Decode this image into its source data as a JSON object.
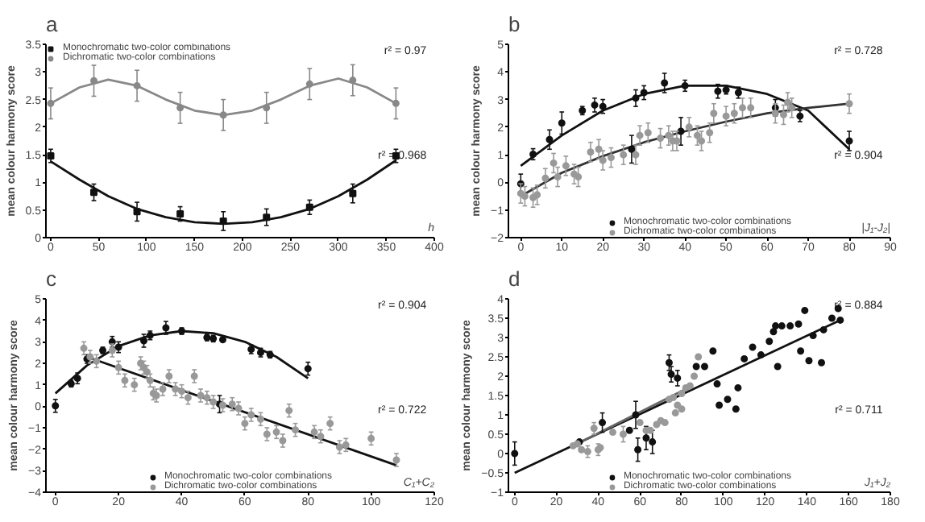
{
  "chart_data": [
    {
      "type": "scatter",
      "title": "a",
      "ylabel": "mean colour harmony score",
      "xlabel": "h",
      "xlim": [
        -5,
        400
      ],
      "xticks": [
        0,
        50,
        100,
        150,
        200,
        250,
        300,
        350,
        400
      ],
      "ylim": [
        0,
        3.5
      ],
      "yticks": [
        0,
        0.5,
        1,
        1.5,
        2,
        2.5,
        3,
        3.5
      ],
      "legend": "top left",
      "annotations": [
        "r² = 0.97",
        "r² = 0.968"
      ],
      "series": [
        {
          "name": "Monochromatic two-color combinations",
          "color": "#111111",
          "marker": "square",
          "x": [
            0,
            45,
            90,
            135,
            180,
            225,
            270,
            315,
            360
          ],
          "values": [
            1.48,
            0.82,
            0.47,
            0.43,
            0.3,
            0.37,
            0.55,
            0.8,
            1.48
          ],
          "errors": [
            0.12,
            0.15,
            0.17,
            0.13,
            0.17,
            0.15,
            0.13,
            0.17,
            0.12
          ]
        },
        {
          "name": "Dichromatic two-color combinations",
          "color": "#888888",
          "marker": "circle",
          "x": [
            0,
            45,
            90,
            135,
            180,
            225,
            270,
            315,
            360
          ],
          "values": [
            2.43,
            2.84,
            2.75,
            2.35,
            2.22,
            2.35,
            2.78,
            2.85,
            2.43
          ],
          "errors": [
            0.28,
            0.28,
            0.28,
            0.28,
            0.28,
            0.28,
            0.28,
            0.28,
            0.28
          ]
        },
        {
          "type": "line",
          "color": "#111111",
          "x": [
            0,
            30,
            60,
            90,
            120,
            150,
            180,
            210,
            240,
            270,
            300,
            330,
            360
          ],
          "values": [
            1.38,
            1.05,
            0.75,
            0.52,
            0.37,
            0.28,
            0.25,
            0.28,
            0.37,
            0.52,
            0.75,
            1.05,
            1.4
          ]
        },
        {
          "type": "line",
          "color": "#888888",
          "x": [
            0,
            30,
            60,
            90,
            120,
            150,
            180,
            210,
            240,
            270,
            300,
            330,
            360
          ],
          "values": [
            2.43,
            2.72,
            2.86,
            2.75,
            2.5,
            2.3,
            2.22,
            2.3,
            2.5,
            2.75,
            2.88,
            2.72,
            2.43
          ]
        }
      ]
    },
    {
      "type": "scatter",
      "title": "b",
      "ylabel": "mean colour harmony score",
      "xlabel": "|J₁-J₂|",
      "xlim": [
        -3,
        90
      ],
      "xticks": [
        0,
        10,
        20,
        30,
        40,
        50,
        60,
        70,
        80,
        90
      ],
      "ylim": [
        -2,
        5
      ],
      "yticks": [
        -2,
        -1,
        0,
        1,
        2,
        3,
        4,
        5
      ],
      "legend": "bottom",
      "annotations": [
        "r² = 0.728",
        "r² = 0.904"
      ],
      "series": [
        {
          "name": "Monochromatic two-color combinations",
          "color": "#111111",
          "marker": "circle",
          "x": [
            0,
            3,
            7,
            10,
            15,
            18,
            20,
            27,
            28,
            30,
            35,
            39,
            40,
            48,
            50,
            53,
            62,
            65,
            68,
            80
          ],
          "values": [
            -0.05,
            1.02,
            1.55,
            2.15,
            2.6,
            2.8,
            2.75,
            1.2,
            3.05,
            3.25,
            3.6,
            1.85,
            3.5,
            3.3,
            3.35,
            3.25,
            2.7,
            null,
            2.4,
            1.5
          ],
          "errors": [
            0.35,
            0.2,
            0.35,
            0.4,
            0.15,
            0.25,
            0.25,
            0.5,
            0.3,
            0.25,
            0.35,
            0.5,
            0.2,
            0.25,
            0.15,
            0.2,
            0.3,
            null,
            0.2,
            0.35
          ]
        },
        {
          "name": "Dichromatic two-color combinations",
          "color": "#999999",
          "marker": "circle",
          "x": [
            0,
            1,
            3,
            4,
            6,
            8,
            9,
            11,
            13,
            14,
            17,
            19,
            20,
            22,
            25,
            28,
            29,
            31,
            34,
            36,
            37,
            38,
            41,
            43,
            44,
            46,
            47,
            50,
            52,
            54,
            56,
            62,
            64,
            65,
            66,
            80
          ],
          "values": [
            -0.4,
            -0.5,
            -0.55,
            -0.45,
            0.15,
            0.7,
            0.2,
            0.6,
            0.3,
            0.2,
            1.1,
            1.2,
            0.8,
            0.9,
            1.0,
            1.0,
            1.7,
            1.8,
            1.6,
            1.7,
            1.5,
            1.5,
            2.0,
            1.7,
            1.5,
            1.8,
            2.5,
            2.4,
            2.5,
            2.7,
            2.7,
            2.5,
            2.45,
            2.9,
            2.7,
            2.85
          ],
          "errors": [
            0.35,
            0.35,
            0.35,
            0.35,
            0.35,
            0.35,
            0.35,
            0.35,
            0.35,
            0.35,
            0.35,
            0.35,
            0.35,
            0.35,
            0.35,
            0.35,
            0.35,
            0.35,
            0.35,
            0.35,
            0.35,
            0.35,
            0.35,
            0.35,
            0.35,
            0.35,
            0.35,
            0.35,
            0.35,
            0.35,
            0.35,
            0.35,
            0.35,
            0.35,
            0.35,
            0.35
          ]
        },
        {
          "type": "line",
          "color": "#111111",
          "x": [
            0,
            10,
            20,
            30,
            40,
            50,
            60,
            70,
            80
          ],
          "values": [
            0.6,
            1.7,
            2.6,
            3.2,
            3.5,
            3.5,
            3.2,
            2.6,
            1.2
          ]
        },
        {
          "type": "line",
          "color": "#333333",
          "x": [
            0,
            10,
            20,
            30,
            40,
            50,
            60,
            70,
            80
          ],
          "values": [
            -0.5,
            0.35,
            0.95,
            1.45,
            1.85,
            2.2,
            2.5,
            2.7,
            2.85
          ]
        }
      ]
    },
    {
      "type": "scatter",
      "title": "c",
      "ylabel": "mean colour harmony score",
      "xlabel": "C₁+C₂",
      "xlim": [
        -3,
        120
      ],
      "xticks": [
        0,
        20,
        40,
        60,
        80,
        100,
        120
      ],
      "ylim": [
        -4,
        5
      ],
      "yticks": [
        -4,
        -3,
        -2,
        -1,
        0,
        1,
        2,
        3,
        4,
        5
      ],
      "legend": "bottom",
      "annotations": [
        "r² = 0.904",
        "r² = 0.722"
      ],
      "series": [
        {
          "name": "Monochromatic two-color combinations",
          "color": "#111111",
          "marker": "circle",
          "x": [
            0,
            5,
            7,
            10,
            15,
            18,
            20,
            28,
            30,
            35,
            40,
            48,
            50,
            52,
            53,
            62,
            65,
            68,
            80
          ],
          "values": [
            0.02,
            1.05,
            1.3,
            2.2,
            2.6,
            3.0,
            2.75,
            3.05,
            3.3,
            3.65,
            3.5,
            3.2,
            3.15,
            0.1,
            3.1,
            2.65,
            2.5,
            2.4,
            1.75
          ],
          "errors": [
            0.3,
            0.15,
            0.25,
            0.2,
            0.15,
            0.25,
            0.25,
            0.3,
            0.2,
            0.3,
            0.15,
            0.15,
            0.15,
            0.4,
            0.1,
            0.2,
            0.2,
            0.15,
            0.3
          ]
        },
        {
          "name": "Dichromatic two-color combinations",
          "color": "#999999",
          "marker": "circle",
          "x": [
            9,
            11,
            13,
            18,
            20,
            22,
            25,
            27,
            28,
            29,
            30,
            31,
            32,
            34,
            36,
            38,
            40,
            42,
            44,
            46,
            48,
            50,
            53,
            56,
            58,
            60,
            62,
            65,
            67,
            70,
            72,
            74,
            76,
            82,
            84,
            87,
            90,
            92,
            100,
            108
          ],
          "values": [
            2.7,
            2.3,
            2.1,
            2.6,
            1.8,
            1.2,
            1.0,
            2.0,
            1.8,
            1.6,
            1.2,
            0.6,
            0.5,
            0.8,
            1.4,
            0.8,
            0.7,
            0.4,
            1.4,
            0.5,
            0.4,
            0.2,
            0.05,
            0.1,
            -0.1,
            -0.8,
            -0.4,
            -0.6,
            -1.3,
            -1.2,
            -1.6,
            -0.2,
            -1.1,
            -1.2,
            -1.4,
            -0.8,
            -1.9,
            -1.8,
            -1.5,
            -2.5
          ],
          "errors": [
            0.3,
            0.3,
            0.3,
            0.3,
            0.3,
            0.3,
            0.3,
            0.3,
            0.3,
            0.3,
            0.3,
            0.3,
            0.3,
            0.3,
            0.3,
            0.3,
            0.3,
            0.3,
            0.3,
            0.3,
            0.3,
            0.3,
            0.3,
            0.3,
            0.3,
            0.3,
            0.3,
            0.3,
            0.3,
            0.3,
            0.3,
            0.3,
            0.3,
            0.3,
            0.3,
            0.3,
            0.3,
            0.3,
            0.3,
            0.3
          ]
        },
        {
          "type": "line",
          "color": "#111111",
          "x": [
            0,
            10,
            20,
            30,
            40,
            50,
            60,
            70,
            80
          ],
          "values": [
            0.6,
            1.9,
            2.8,
            3.3,
            3.5,
            3.4,
            3.0,
            2.3,
            1.3
          ]
        },
        {
          "type": "line",
          "color": "#111111",
          "x": [
            10,
            108
          ],
          "values": [
            2.3,
            -2.75
          ]
        }
      ]
    },
    {
      "type": "scatter",
      "title": "d",
      "ylabel": "mean colour harmony score",
      "xlabel": "J₁+J₂",
      "xlim": [
        -3,
        180
      ],
      "xticks": [
        0,
        20,
        40,
        60,
        80,
        100,
        120,
        140,
        160,
        180
      ],
      "ylim": [
        -1,
        4
      ],
      "yticks": [
        -1,
        -0.5,
        0,
        0.5,
        1,
        1.5,
        2,
        2.5,
        3,
        3.5,
        4
      ],
      "legend": "bottom",
      "annotations": [
        "r² = 0.884",
        "r² = 0.711"
      ],
      "series": [
        {
          "name": "Monochromatic two-color combinations",
          "color": "#111111",
          "marker": "circle",
          "x": [
            0,
            29,
            31,
            42,
            55,
            58,
            59,
            63,
            66,
            74,
            75,
            78,
            87,
            91,
            95,
            97,
            98,
            102,
            106,
            107,
            110,
            114,
            118,
            122,
            124,
            125,
            126,
            128,
            132,
            136,
            137,
            139,
            141,
            143,
            147,
            148,
            152,
            155,
            156
          ],
          "values": [
            0,
            null,
            0.3,
            0.8,
            0.6,
            1.0,
            0.1,
            0.4,
            0.3,
            2.35,
            2.05,
            1.95,
            2.25,
            2.25,
            2.65,
            1.8,
            1.25,
            1.4,
            1.15,
            1.7,
            2.45,
            2.75,
            2.55,
            2.9,
            3.15,
            3.3,
            2.25,
            3.3,
            3.3,
            3.35,
            2.65,
            3.7,
            2.4,
            3.05,
            2.35,
            3.2,
            3.5,
            3.75,
            3.45
          ],
          "errors": [
            0.3,
            null,
            null,
            0.25,
            null,
            0.35,
            0.3,
            0.3,
            0.3,
            0.2,
            0.2,
            0.2,
            null,
            null,
            null,
            null,
            null,
            null,
            null,
            null,
            null,
            null,
            null,
            null,
            null,
            null,
            null,
            null,
            null,
            null,
            null,
            null,
            null,
            null,
            null,
            null,
            null,
            null,
            null
          ]
        },
        {
          "name": "Dichromatic two-color combinations",
          "color": "#999999",
          "marker": "circle",
          "x": [
            28,
            30,
            32,
            35,
            38,
            40,
            41,
            47,
            52,
            60,
            63,
            65,
            68,
            70,
            72,
            74,
            76,
            77,
            78,
            80,
            80,
            82,
            84,
            86,
            88
          ],
          "values": [
            0.2,
            0.25,
            0.1,
            0.05,
            0.65,
            0.1,
            0.15,
            0.55,
            0.5,
            0.8,
            0.6,
            0.6,
            0.75,
            0.85,
            0.8,
            1.4,
            1.45,
            1.05,
            1.25,
            1.55,
            1.15,
            1.7,
            1.75,
            2.0,
            2.5
          ],
          "errors": [
            null,
            null,
            null,
            0.15,
            0.15,
            0.15,
            null,
            null,
            0.2,
            null,
            null,
            null,
            null,
            null,
            null,
            null,
            null,
            null,
            null,
            null,
            null,
            null,
            null,
            null,
            null
          ]
        },
        {
          "type": "line",
          "color": "#111111",
          "x": [
            0,
            156
          ],
          "values": [
            -0.5,
            3.45
          ]
        },
        {
          "type": "line",
          "color": "#666666",
          "x": [
            28,
            85
          ],
          "values": [
            0.2,
            1.75
          ]
        }
      ]
    }
  ]
}
